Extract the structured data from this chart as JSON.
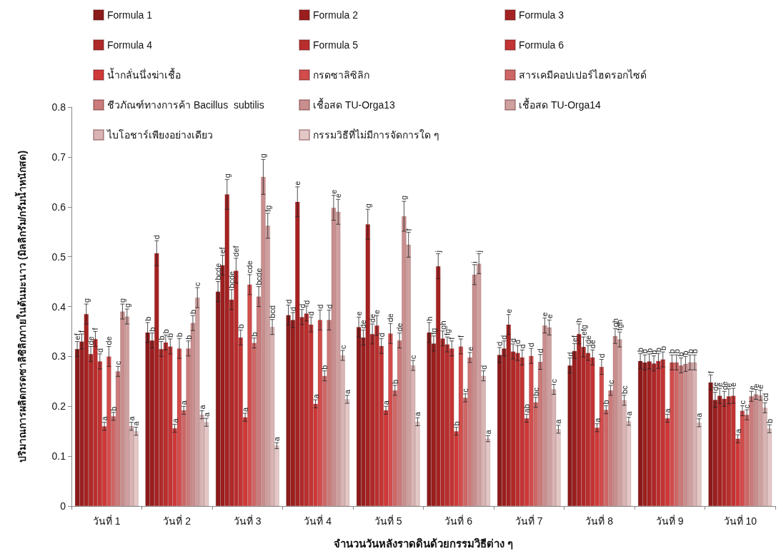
{
  "chart_data": {
    "type": "bar",
    "xlabel": "จำนวนวันหลังราดดินด้วยกรรมวิธีต่าง ๆ",
    "ylabel": "ปริมาณการผลิตกรดซาลิซิลิกภายในต้นมะนาว (มิลลิกรัม/กรัมน้ำหนักสด)",
    "categories": [
      "วันที่ 1",
      "วันที่ 2",
      "วันที่ 3",
      "วันที่ 4",
      "วันที่ 5",
      "วันที่ 6",
      "วันที่ 7",
      "วันที่ 8",
      "วันที่ 9",
      "วันที่ 10"
    ],
    "ylim": [
      0,
      0.8
    ],
    "yticks": [
      0,
      0.1,
      0.2,
      0.3,
      0.4,
      0.5,
      0.6,
      0.7,
      0.8
    ],
    "legend": "top",
    "series": [
      {
        "name": "Formula 1",
        "color": "#8b1a1a",
        "values": [
          0.315,
          0.348,
          0.43,
          0.383,
          0.359,
          0.348,
          0.303,
          0.282,
          0.291,
          0.248
        ],
        "errors": [
          0.015,
          0.02,
          0.02,
          0.02,
          0.02,
          0.02,
          0.015,
          0.015,
          0.015,
          0.015
        ],
        "value_labels": [
          "ef",
          "b",
          "bcde",
          "d",
          "e",
          "h",
          "d",
          "d",
          "b",
          "f"
        ]
      },
      {
        "name": "Formula 2",
        "color": "#9a1e1e",
        "values": [
          0.33,
          0.332,
          0.483,
          0.373,
          0.338,
          0.326,
          0.316,
          0.311,
          0.288,
          0.213
        ],
        "errors": [
          0.015,
          0.015,
          0.02,
          0.015,
          0.015,
          0.015,
          0.015,
          0.015,
          0.015,
          0.015
        ],
        "value_labels": [
          "f",
          "b",
          "ef",
          "d",
          "de",
          "fg",
          "d",
          "ef",
          "b",
          "de"
        ]
      },
      {
        "name": "Formula 3",
        "color": "#a52222",
        "values": [
          0.385,
          0.507,
          0.625,
          0.61,
          0.565,
          0.481,
          0.364,
          0.345,
          0.29,
          0.221
        ],
        "errors": [
          0.02,
          0.025,
          0.03,
          0.03,
          0.03,
          0.025,
          0.02,
          0.02,
          0.015,
          0.015
        ],
        "value_labels": [
          "g",
          "d",
          "g",
          "e",
          "g",
          "j",
          "e",
          "h",
          "b",
          "e"
        ]
      },
      {
        "name": "Formula 4",
        "color": "#b02828",
        "values": [
          0.305,
          0.315,
          0.414,
          0.379,
          0.345,
          0.336,
          0.31,
          0.319,
          0.286,
          0.215
        ],
        "errors": [
          0.015,
          0.015,
          0.02,
          0.015,
          0.02,
          0.015,
          0.015,
          0.02,
          0.015,
          0.015
        ],
        "value_labels": [
          "de",
          "b",
          "bcde",
          "d",
          "de",
          "gh",
          "d",
          "efg",
          "b",
          "de"
        ]
      },
      {
        "name": "Formula 5",
        "color": "#ba2e2e",
        "values": [
          0.335,
          0.328,
          0.472,
          0.386,
          0.362,
          0.324,
          0.307,
          0.307,
          0.291,
          0.22
        ],
        "errors": [
          0.015,
          0.015,
          0.025,
          0.015,
          0.02,
          0.015,
          0.015,
          0.015,
          0.015,
          0.015
        ],
        "value_labels": [
          "f",
          "b",
          "def",
          "d",
          "e",
          "fg",
          "d",
          "de",
          "b",
          "e"
        ]
      },
      {
        "name": "Formula 6",
        "color": "#c33333",
        "values": [
          0.29,
          0.32,
          0.338,
          0.364,
          0.321,
          0.316,
          0.298,
          0.298,
          0.294,
          0.221
        ],
        "errors": [
          0.015,
          0.015,
          0.015,
          0.015,
          0.015,
          0.015,
          0.015,
          0.015,
          0.015,
          0.015
        ],
        "value_labels": [
          "d",
          "b",
          "b",
          "d",
          "d",
          "f",
          "d",
          "de",
          "b",
          "e"
        ]
      },
      {
        "name": "น้ำกลั่นนึ่งฆ่าเชื้อ",
        "color": "#d03838",
        "values": [
          0.16,
          0.156,
          0.178,
          0.205,
          0.192,
          0.15,
          0.176,
          0.157,
          0.176,
          0.135
        ],
        "errors": [
          0.008,
          0.008,
          0.008,
          0.008,
          0.008,
          0.008,
          0.008,
          0.008,
          0.008,
          0.008
        ],
        "value_labels": [
          "a",
          "a",
          "a",
          "a",
          "a",
          "b",
          "ab",
          "a",
          "a",
          "a"
        ]
      },
      {
        "name": "กรดซาลิซิลิก",
        "color": "#d24c4c",
        "values": [
          0.3,
          0.316,
          0.444,
          0.373,
          0.346,
          0.32,
          0.301,
          0.279,
          0.288,
          0.191
        ],
        "errors": [
          0.02,
          0.02,
          0.02,
          0.02,
          0.02,
          0.015,
          0.015,
          0.015,
          0.015,
          0.01
        ],
        "value_labels": [
          "de",
          "b",
          "cde",
          "d",
          "de",
          "f",
          "d",
          "d",
          "b",
          "c"
        ]
      },
      {
        "name": "สารเคมีคอปเปอร์ไฮดรอกไซด์",
        "color": "#cf6767",
        "values": [
          0.18,
          0.192,
          0.327,
          0.261,
          0.232,
          0.217,
          0.208,
          0.193,
          0.288,
          0.183
        ],
        "errors": [
          0.008,
          0.008,
          0.01,
          0.01,
          0.01,
          0.008,
          0.01,
          0.008,
          0.015,
          0.01
        ],
        "value_labels": [
          "b",
          "a",
          "b",
          "b",
          "b",
          "c",
          "bc",
          "b",
          "b",
          "c"
        ]
      },
      {
        "name": "ชีวภัณฑ์ทางการค้า Bacillus  subtilis",
        "color": "#cb7b7b",
        "values": [
          0.27,
          0.316,
          0.42,
          0.373,
          0.332,
          0.298,
          0.289,
          0.232,
          0.282,
          0.22
        ],
        "errors": [
          0.01,
          0.015,
          0.02,
          0.02,
          0.015,
          0.01,
          0.015,
          0.01,
          0.015,
          0.01
        ],
        "value_labels": [
          "c",
          "b",
          "bcde",
          "d",
          "de",
          "e",
          "d",
          "c",
          "b",
          "e"
        ]
      },
      {
        "name": "เชื้อสด TU-Orga13",
        "color": "#c98e8e",
        "values": [
          0.39,
          0.367,
          0.66,
          0.598,
          0.581,
          0.464,
          0.362,
          0.341,
          0.285,
          0.224
        ],
        "errors": [
          0.015,
          0.015,
          0.035,
          0.025,
          0.03,
          0.02,
          0.015,
          0.015,
          0.015,
          0.01
        ],
        "value_labels": [
          "g",
          "b",
          "g",
          "e",
          "g",
          "i",
          "e",
          "gh",
          "b",
          "e"
        ]
      },
      {
        "name": "เชื้อสด TU-Orga14",
        "color": "#cfa0a0",
        "values": [
          0.38,
          0.418,
          0.562,
          0.59,
          0.524,
          0.486,
          0.358,
          0.334,
          0.288,
          0.222
        ],
        "errors": [
          0.015,
          0.02,
          0.025,
          0.025,
          0.025,
          0.02,
          0.015,
          0.015,
          0.015,
          0.01
        ],
        "value_labels": [
          "g",
          "c",
          "fg",
          "e",
          "f",
          "j",
          "e",
          "fgh",
          "b",
          "e"
        ]
      },
      {
        "name": "ไบโอชาร์เพียงอย่างเดียว",
        "color": "#d9b4b4",
        "values": [
          0.16,
          0.183,
          0.359,
          0.302,
          0.282,
          0.261,
          0.234,
          0.212,
          0.288,
          0.197
        ],
        "errors": [
          0.008,
          0.008,
          0.015,
          0.01,
          0.01,
          0.01,
          0.01,
          0.01,
          0.015,
          0.01
        ],
        "value_labels": [
          "a",
          "a",
          "bcd",
          "c",
          "c",
          "d",
          "c",
          "bc",
          "b",
          "cd"
        ]
      },
      {
        "name": "กรรมวิธีที่ไม่มีการจัดการใด ๆ",
        "color": "#e4c8c8",
        "values": [
          0.15,
          0.168,
          0.121,
          0.214,
          0.169,
          0.135,
          0.154,
          0.17,
          0.167,
          0.155
        ],
        "errors": [
          0.008,
          0.008,
          0.006,
          0.008,
          0.008,
          0.006,
          0.008,
          0.008,
          0.008,
          0.008
        ],
        "value_labels": [
          "a",
          "a",
          "a",
          "a",
          "a",
          "a",
          "a",
          "a",
          "a",
          "b"
        ]
      }
    ]
  }
}
